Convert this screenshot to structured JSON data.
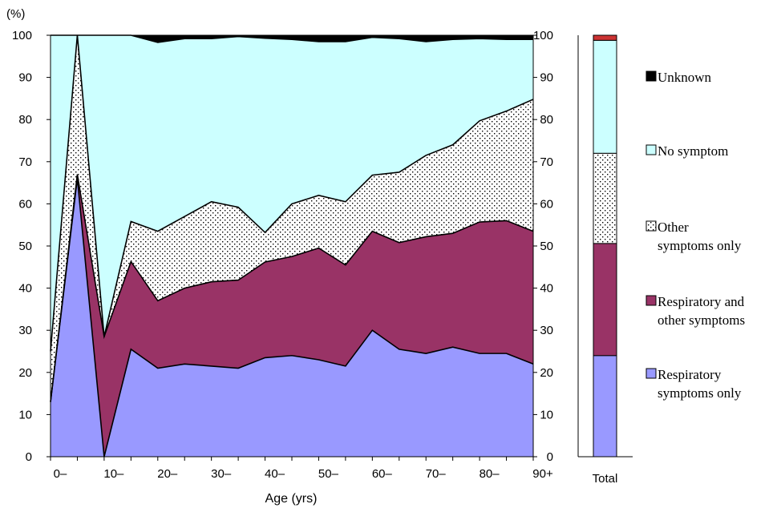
{
  "chart_data": [
    {
      "type": "area",
      "stacked": true,
      "unit_label": "(%)",
      "xlabel": "Age (yrs)",
      "ylim": [
        0,
        100
      ],
      "y_ticks": [
        0,
        10,
        20,
        30,
        40,
        50,
        60,
        70,
        80,
        90,
        100
      ],
      "x_tick_labels": [
        "0–",
        "10–",
        "20–",
        "30–",
        "40–",
        "50–",
        "60–",
        "70–",
        "80–",
        "90+"
      ],
      "x": [
        0,
        5,
        10,
        15,
        20,
        25,
        30,
        35,
        40,
        45,
        50,
        55,
        60,
        65,
        70,
        75,
        80,
        85,
        90
      ],
      "series": [
        {
          "name": "Respiratory symptoms only",
          "color": "#9999ff",
          "pattern": "solid",
          "values": [
            13,
            66,
            0,
            25.5,
            21,
            22,
            21.5,
            21,
            23.5,
            24,
            23,
            21.5,
            30,
            25.5,
            24.5,
            26,
            24.5,
            24.5,
            22
          ]
        },
        {
          "name": "Respiratory and other symptoms",
          "color": "#993366",
          "pattern": "solid",
          "values": [
            0,
            1,
            28.5,
            20.8,
            16,
            18,
            20,
            20.9,
            22.7,
            23.5,
            26.5,
            24,
            23.5,
            25.3,
            27.7,
            27,
            31.2,
            31.5,
            31.5
          ]
        },
        {
          "name": "Other symptoms only",
          "color": "#000000",
          "pattern": "dots",
          "values": [
            12,
            33,
            0,
            9.5,
            16.5,
            17,
            19,
            17.3,
            7,
            12.5,
            12.5,
            15,
            13.3,
            16.7,
            19.3,
            21,
            24,
            26,
            31.3
          ]
        },
        {
          "name": "No symptom",
          "color": "#ccffff",
          "pattern": "solid",
          "values": [
            75,
            0,
            71.5,
            44.2,
            44.8,
            42.2,
            38.7,
            40.5,
            46.1,
            39,
            36.5,
            38,
            32.7,
            31.7,
            27,
            25,
            19.5,
            17,
            14.2
          ]
        },
        {
          "name": "Unknown",
          "color": "#000000",
          "pattern": "solid",
          "values": [
            0,
            0,
            0,
            0,
            1.7,
            0.8,
            0.8,
            0.3,
            0.7,
            1,
            1.5,
            1.5,
            0.5,
            0.8,
            1.5,
            1,
            0.8,
            1,
            1
          ]
        }
      ]
    },
    {
      "type": "bar",
      "stacked": true,
      "categories": [
        "Total"
      ],
      "ylim": [
        0,
        100
      ],
      "series": [
        {
          "name": "Respiratory symptoms only",
          "values": [
            24
          ]
        },
        {
          "name": "Respiratory and other symptoms",
          "values": [
            26.6
          ]
        },
        {
          "name": "Other symptoms only",
          "values": [
            21.4
          ]
        },
        {
          "name": "No symptom",
          "values": [
            26.8
          ]
        },
        {
          "name": "Unknown",
          "values": [
            1.2
          ],
          "color": "#cc3333"
        }
      ]
    }
  ],
  "legend": {
    "placement": "right",
    "items": [
      {
        "lines": [
          "Unknown"
        ],
        "icon": "solid-black-square-icon"
      },
      {
        "lines": [
          "No symptom"
        ],
        "icon": "cyan-square-icon"
      },
      {
        "lines": [
          "Other",
          "symptoms only"
        ],
        "icon": "dotted-square-icon"
      },
      {
        "lines": [
          "Respiratory and",
          "other symptoms"
        ],
        "icon": "maroon-square-icon"
      },
      {
        "lines": [
          "Respiratory",
          "symptoms only"
        ],
        "icon": "blue-square-icon"
      }
    ]
  }
}
